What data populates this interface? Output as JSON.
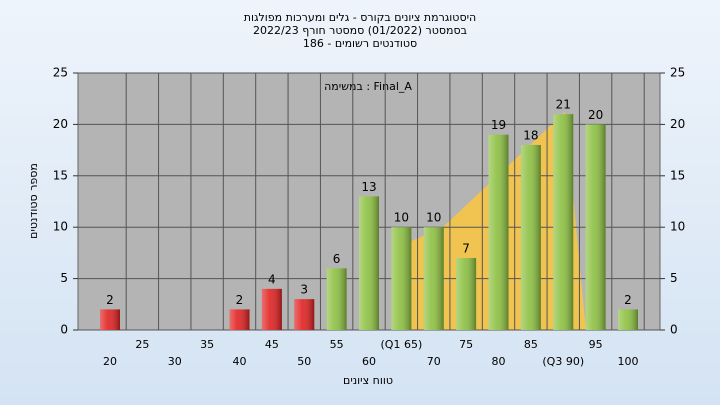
{
  "chart_data": {
    "type": "bar",
    "title": "היסטוגרמת ציונים בקורס - גלים ומערכות מפולגות",
    "subtitle": "בסמסטר  (01/2022)  סמסטר חורף 2022/23",
    "subtitle2": "סטודנטים רשומים - 186",
    "annotation": "במשימה : Final_A",
    "x_label": "טווח ציונים",
    "y_label": "מספר סטודנטים",
    "categories": [
      "20",
      "25",
      "30",
      "35",
      "40",
      "45",
      "50",
      "55",
      "60",
      "(Q1 65)",
      "70",
      "75",
      "80",
      "85",
      "(Q3 90)",
      "95",
      "100"
    ],
    "values": [
      2,
      0,
      0,
      0,
      2,
      4,
      3,
      6,
      13,
      10,
      10,
      7,
      19,
      18,
      21,
      20,
      2
    ],
    "colors": [
      "#e02020",
      "#e02020",
      "#e02020",
      "#e02020",
      "#e02020",
      "#e02020",
      "#e02020",
      "#8cc040",
      "#8cc040",
      "#8cc040",
      "#8cc040",
      "#8cc040",
      "#8cc040",
      "#8cc040",
      "#8cc040",
      "#8cc040",
      "#8cc040"
    ],
    "ylim": [
      0,
      25
    ],
    "yticks": [
      0,
      5,
      10,
      15,
      20,
      25
    ],
    "y2lim": [
      0,
      25
    ],
    "y2ticks": [
      0,
      5,
      10,
      15,
      20,
      25
    ],
    "grid": true
  }
}
